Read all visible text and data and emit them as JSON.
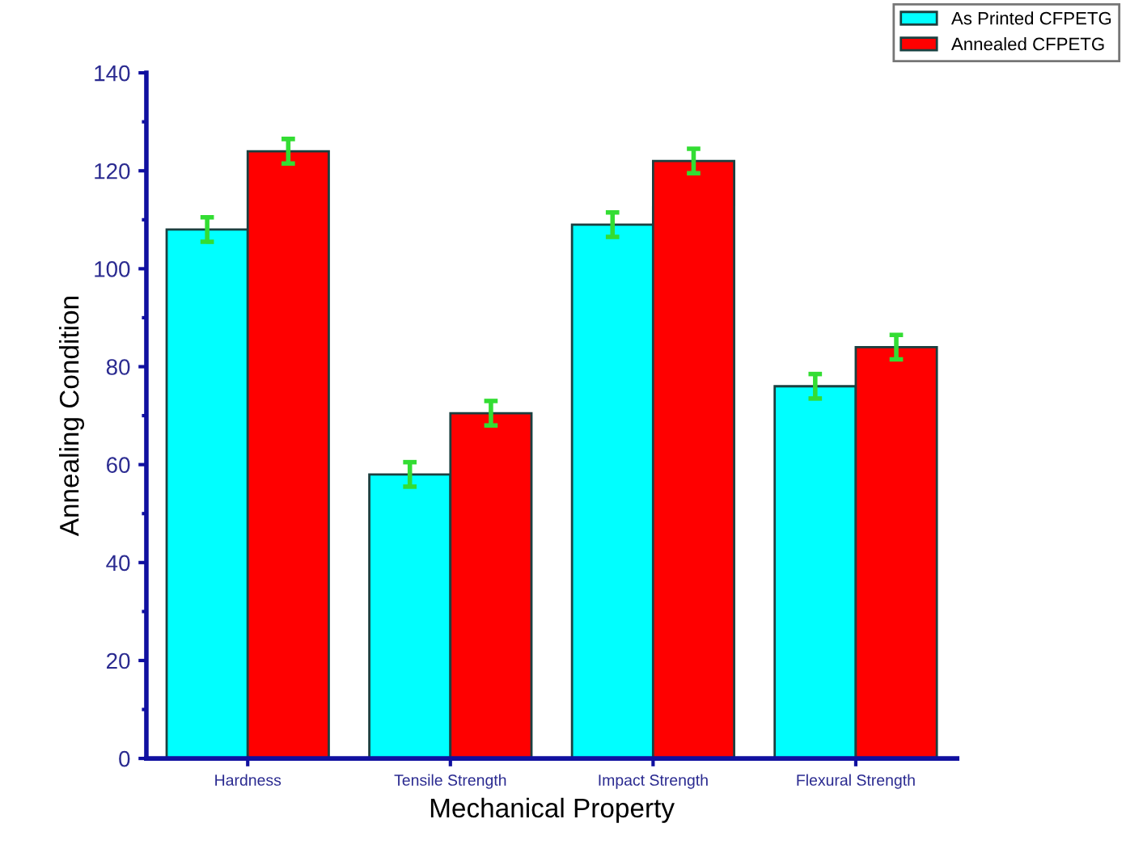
{
  "chart_data": {
    "type": "bar",
    "xlabel": "Mechanical Property",
    "ylabel": "Annealing Condition",
    "categories": [
      "Hardness",
      "Tensile Strength",
      "Impact Strength",
      "Flexural Strength"
    ],
    "series": [
      {
        "name": "As Printed CFPETG",
        "color": "#00ffff",
        "values": [
          108,
          58,
          109,
          76
        ],
        "errors": [
          2.5,
          2.5,
          2.5,
          2.5
        ]
      },
      {
        "name": "Annealed CFPETG",
        "color": "#ff0000",
        "values": [
          124,
          70.5,
          122,
          84
        ],
        "errors": [
          2.5,
          2.5,
          2.5,
          2.5
        ]
      }
    ],
    "ylim": [
      0,
      140
    ],
    "yticks": [
      0,
      20,
      40,
      60,
      80,
      100,
      120,
      140
    ],
    "grid": false,
    "legend": "top right"
  }
}
